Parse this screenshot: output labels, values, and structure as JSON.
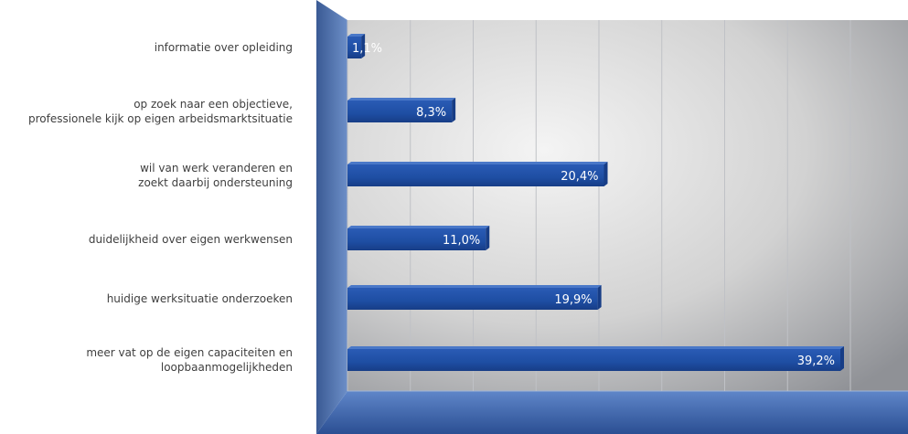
{
  "chart_data": {
    "type": "bar",
    "orientation": "horizontal",
    "categories": [
      "informatie over opleiding",
      "op zoek naar een objectieve,\nprofessionele kijk op eigen arbeidsmarktsituatie",
      "wil van werk veranderen en\nzoekt daarbij ondersteuning",
      "duidelijkheid over eigen werkwensen",
      "huidige werksituatie onderzoeken",
      "meer vat op de eigen capaciteiten en\nloopbaanmogelijkheden"
    ],
    "values": [
      1.1,
      8.3,
      20.4,
      11.0,
      19.9,
      39.2
    ],
    "value_labels": [
      "1,1%",
      "8,3%",
      "20,4%",
      "11,0%",
      "19,9%",
      "39,2%"
    ],
    "xlim": [
      0,
      40
    ],
    "grid": true,
    "colors": {
      "bar": "#1f4fa6",
      "bar_dark": "#173d86",
      "bar_light": "#4a78c8"
    }
  }
}
